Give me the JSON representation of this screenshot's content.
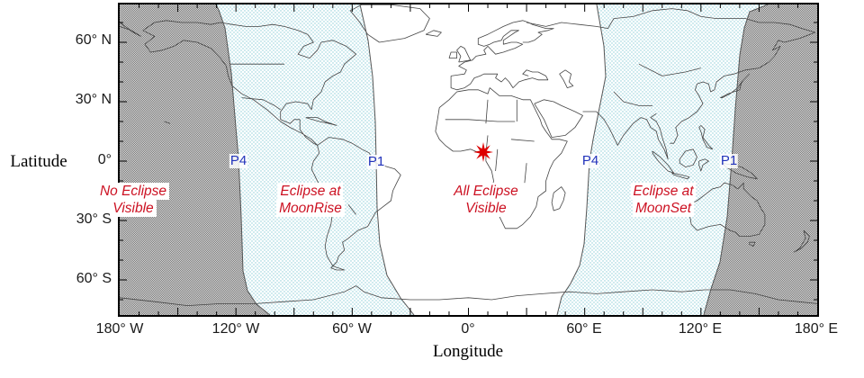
{
  "figure": {
    "kind": "lunar-eclipse-visibility-world-map",
    "axes": {
      "xlabel": "Longitude",
      "ylabel": "Latitude",
      "x_ticks": [
        "180° W",
        "120° W",
        "60° W",
        "0°",
        "60° E",
        "120° E",
        "180° E"
      ],
      "y_ticks": [
        "60° N",
        "30° N",
        "0°",
        "30° S",
        "60° S"
      ],
      "x_range_deg": [
        -180,
        180
      ],
      "y_range_deg": [
        -78,
        79
      ],
      "minor_tick_step_deg": 10,
      "major_tick_step_deg": 30
    },
    "regions": [
      {
        "id": "no-eclipse-visible",
        "lines": [
          "No Eclipse",
          "Visible"
        ],
        "shading": "dark-checker"
      },
      {
        "id": "eclipse-at-moonrise",
        "lines": [
          "Eclipse at",
          "MoonRise"
        ],
        "shading": "cyan-dots"
      },
      {
        "id": "all-eclipse-visible",
        "lines": [
          "All Eclipse",
          "Visible"
        ],
        "shading": "none"
      },
      {
        "id": "eclipse-at-moonset",
        "lines": [
          "Eclipse at",
          "MoonSet"
        ],
        "shading": "cyan-dots"
      }
    ],
    "contacts": [
      {
        "label": "P4",
        "approx_lon_deg": -119,
        "approx_lat_deg": 0
      },
      {
        "label": "P1",
        "approx_lon_deg": -48,
        "approx_lat_deg": 0
      },
      {
        "label": "P4",
        "approx_lon_deg": 63,
        "approx_lat_deg": 0
      },
      {
        "label": "P1",
        "approx_lon_deg": 134,
        "approx_lat_deg": 0
      }
    ],
    "marker": {
      "name": "greatest-eclipse-star",
      "approx_lon_deg": 8,
      "approx_lat_deg": 4
    },
    "colors": {
      "region_label": "#cc1122",
      "contact_label": "#2233bb",
      "star": "#dd0000",
      "checker_dark": "#7a7a7a",
      "checker_light": "#d8d8d8",
      "dot_cyan": "#8accd8",
      "coastline": "#444444",
      "boundary": "#555555",
      "axis": "#000000"
    }
  }
}
